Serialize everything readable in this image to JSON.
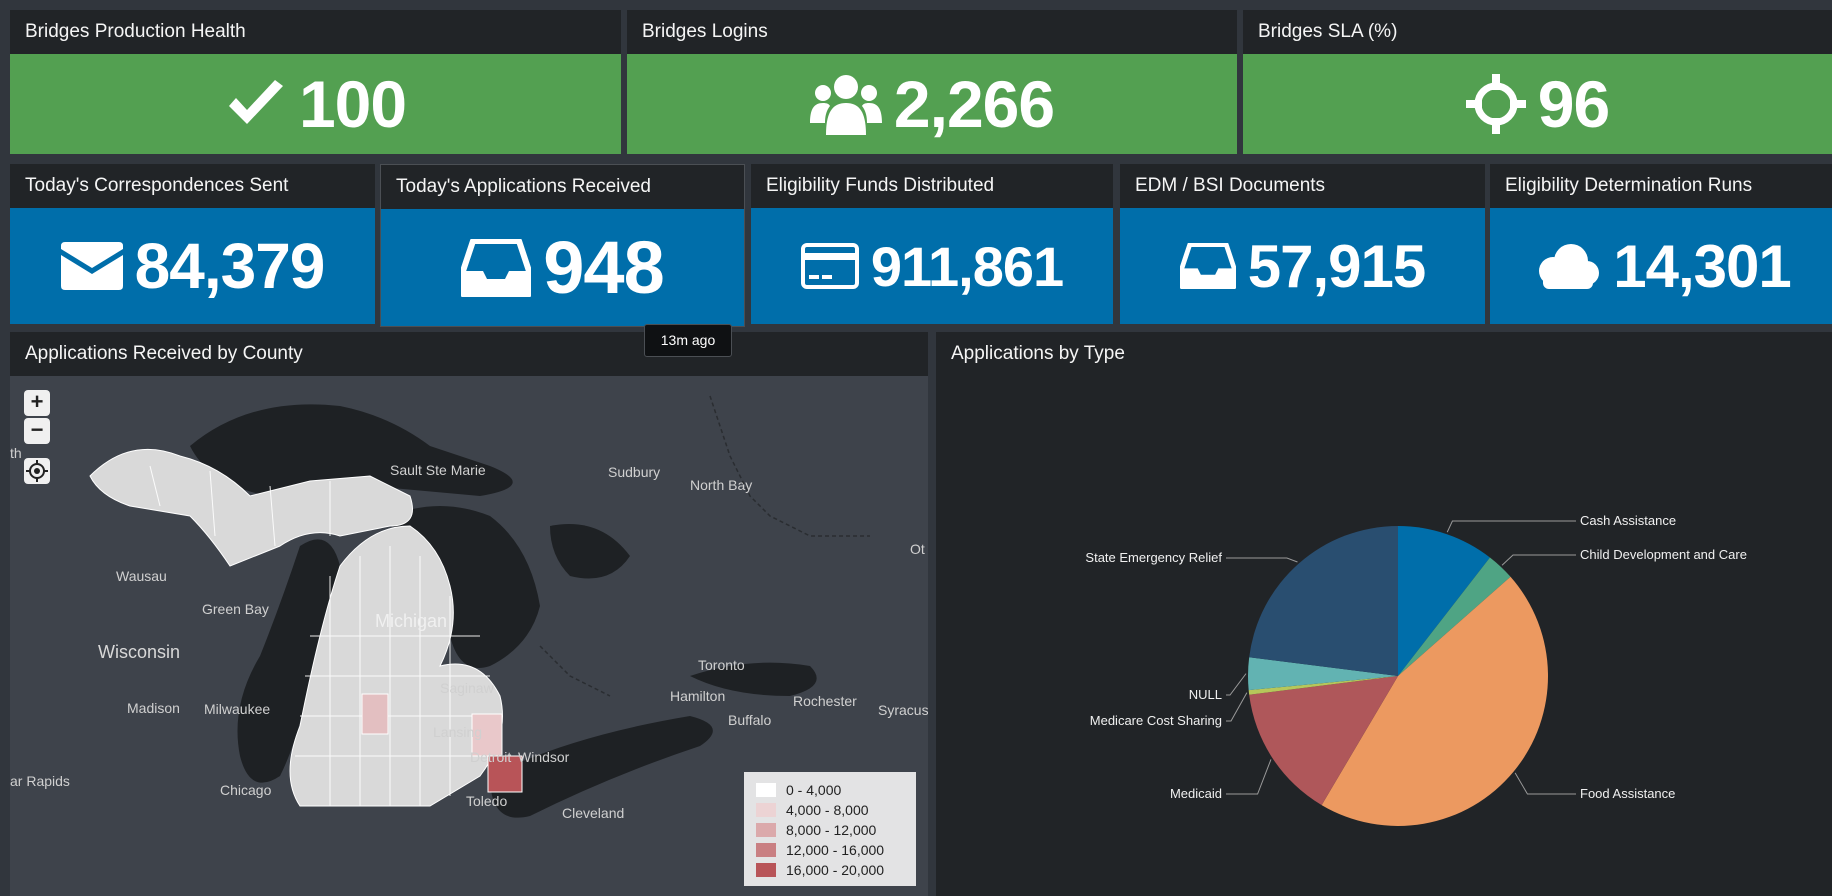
{
  "top_row": [
    {
      "title": "Bridges Production Health",
      "value": "100",
      "icon": "check-icon"
    },
    {
      "title": "Bridges Logins",
      "value": "2,266",
      "icon": "users-icon"
    },
    {
      "title": "Bridges SLA (%)",
      "value": "96",
      "icon": "crosshairs-icon"
    }
  ],
  "second_row": [
    {
      "title": "Today's Correspondences Sent",
      "value": "84,379",
      "icon": "envelope-icon"
    },
    {
      "title": "Today's Applications Received",
      "value": "948",
      "icon": "inbox-icon"
    },
    {
      "title": "Eligibility Funds Distributed",
      "value": "911,861",
      "icon": "credit-card-icon"
    },
    {
      "title": "EDM / BSI Documents",
      "value": "57,915",
      "icon": "inbox-icon"
    },
    {
      "title": "Eligibility Determination Runs",
      "value": "14,301",
      "icon": "cloud-icon"
    }
  ],
  "tooltip": "13m ago",
  "map_panel": {
    "title": "Applications Received by County",
    "zoom_in": "+",
    "zoom_out": "−",
    "place_labels": [
      {
        "name": "Sault Ste Marie"
      },
      {
        "name": "Sudbury"
      },
      {
        "name": "North Bay"
      },
      {
        "name": "Wausau"
      },
      {
        "name": "Green Bay"
      },
      {
        "name": "Michigan"
      },
      {
        "name": "Wisconsin"
      },
      {
        "name": "Madison"
      },
      {
        "name": "Milwaukee"
      },
      {
        "name": "Saginaw"
      },
      {
        "name": "Lansing"
      },
      {
        "name": "Toronto"
      },
      {
        "name": "Hamilton"
      },
      {
        "name": "Rochester"
      },
      {
        "name": "Buffalo"
      },
      {
        "name": "Syracus"
      },
      {
        "name": "Detroit"
      },
      {
        "name": "Windsor"
      },
      {
        "name": "Chicago"
      },
      {
        "name": "Toledo"
      },
      {
        "name": "Cleveland"
      },
      {
        "name": "ar Rapids"
      },
      {
        "name": "th"
      },
      {
        "name": "Ot"
      }
    ],
    "legend": [
      {
        "label": "0 - 4,000",
        "color": "#ffffff"
      },
      {
        "label": "4,000 - 8,000",
        "color": "#ecd3d4"
      },
      {
        "label": "8,000 - 12,000",
        "color": "#dba9ab"
      },
      {
        "label": "12,000 - 16,000",
        "color": "#c97f82"
      },
      {
        "label": "16,000 - 20,000",
        "color": "#b85458"
      }
    ]
  },
  "pie_panel": {
    "title": "Applications by Type"
  },
  "chart_data": {
    "type": "pie",
    "title": "Applications by Type",
    "slices": [
      {
        "label": "Cash Assistance",
        "value": 10.5,
        "color": "#006eaa"
      },
      {
        "label": "Child Development and Care",
        "value": 3.0,
        "color": "#4fa484"
      },
      {
        "label": "Food Assistance",
        "value": 45.0,
        "color": "#ec9960"
      },
      {
        "label": "Medicaid",
        "value": 14.5,
        "color": "#af575a"
      },
      {
        "label": "Medicare Cost Sharing",
        "value": 0.5,
        "color": "#b6c75a"
      },
      {
        "label": "NULL",
        "value": 3.5,
        "color": "#62b3b2"
      },
      {
        "label": "State Emergency Relief",
        "value": 23.0,
        "color": "#294e70"
      }
    ]
  }
}
